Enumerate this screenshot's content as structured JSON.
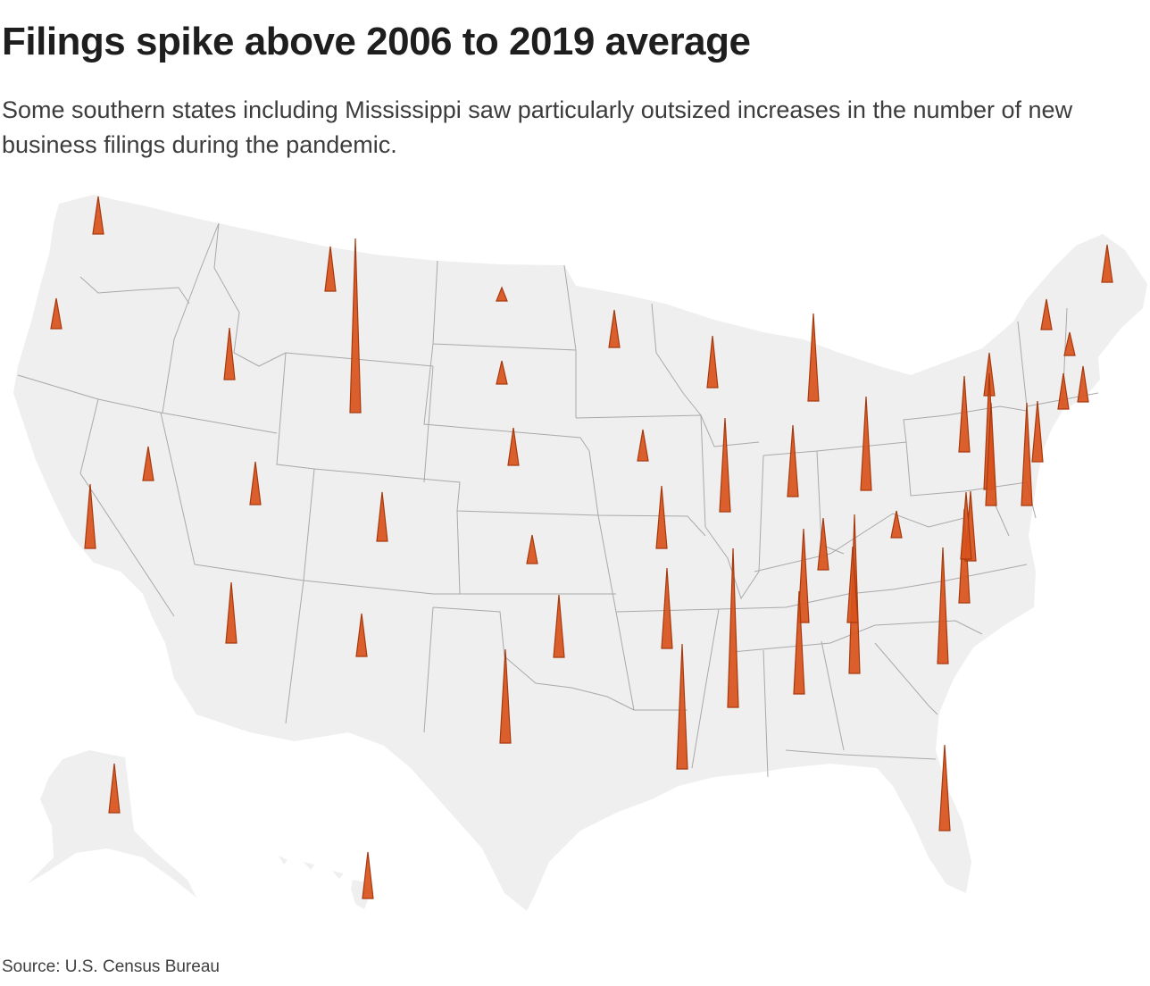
{
  "title": "Filings spike above 2006 to 2019 average",
  "subtitle": "Some southern states including Mississippi saw particularly outsized increases in the number of new business filings during the pandemic.",
  "source": "Source: U.S. Census Bureau",
  "colors": {
    "spike_fill": "#d8531c",
    "spike_stroke": "#a63a0e",
    "land": "#efefef",
    "border": "#a9a9a9"
  },
  "spikes": [
    {
      "state": "Washington",
      "height": 42
    },
    {
      "state": "Oregon",
      "height": 34
    },
    {
      "state": "California",
      "height": 72
    },
    {
      "state": "Nevada",
      "height": 38
    },
    {
      "state": "Idaho",
      "height": 58
    },
    {
      "state": "Montana West",
      "height": 50
    },
    {
      "state": "Montana East / Wyoming",
      "height": 195
    },
    {
      "state": "Utah",
      "height": 48
    },
    {
      "state": "Arizona",
      "height": 68
    },
    {
      "state": "Colorado",
      "height": 55
    },
    {
      "state": "New Mexico",
      "height": 48
    },
    {
      "state": "North Dakota",
      "height": 15
    },
    {
      "state": "South Dakota",
      "height": 26
    },
    {
      "state": "Nebraska",
      "height": 42
    },
    {
      "state": "Kansas",
      "height": 32
    },
    {
      "state": "Oklahoma",
      "height": 70
    },
    {
      "state": "Texas",
      "height": 105
    },
    {
      "state": "Minnesota",
      "height": 42
    },
    {
      "state": "Iowa",
      "height": 35
    },
    {
      "state": "Missouri",
      "height": 70
    },
    {
      "state": "Arkansas",
      "height": 90
    },
    {
      "state": "Louisiana",
      "height": 140
    },
    {
      "state": "Wisconsin",
      "height": 58
    },
    {
      "state": "Illinois",
      "height": 105
    },
    {
      "state": "Michigan",
      "height": 98
    },
    {
      "state": "Indiana",
      "height": 80
    },
    {
      "state": "Ohio",
      "height": 105
    },
    {
      "state": "Kentucky",
      "height": 58
    },
    {
      "state": "Tennessee",
      "height": 105
    },
    {
      "state": "Mississippi",
      "height": 178
    },
    {
      "state": "Alabama",
      "height": 115
    },
    {
      "state": "Georgia",
      "height": 178
    },
    {
      "state": "Florida",
      "height": 96
    },
    {
      "state": "South Carolina",
      "height": 130
    },
    {
      "state": "North Carolina",
      "height": 105
    },
    {
      "state": "Virginia",
      "height": 78
    },
    {
      "state": "West Virginia",
      "height": 30
    },
    {
      "state": "Pennsylvania",
      "height": 85
    },
    {
      "state": "New York",
      "height": 48
    },
    {
      "state": "Maryland",
      "height": 130
    },
    {
      "state": "Delaware",
      "height": 115
    },
    {
      "state": "New Jersey",
      "height": 115
    },
    {
      "state": "Connecticut",
      "height": 68
    },
    {
      "state": "Rhode Island",
      "height": 40
    },
    {
      "state": "Massachusetts",
      "height": 40
    },
    {
      "state": "Vermont",
      "height": 34
    },
    {
      "state": "New Hampshire",
      "height": 26
    },
    {
      "state": "Maine",
      "height": 42
    },
    {
      "state": "DC",
      "height": 75
    },
    {
      "state": "Tennessee East",
      "height": 85
    },
    {
      "state": "Alaska",
      "height": 55
    },
    {
      "state": "Hawaii",
      "height": 52
    }
  ]
}
